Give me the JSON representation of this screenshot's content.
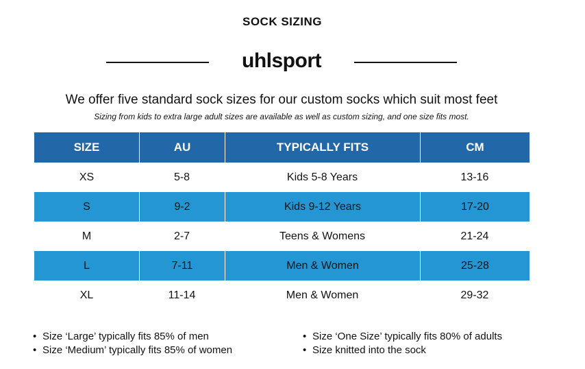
{
  "heading": "SOCK SIZING",
  "brand": "uhlsport",
  "intro": "We offer five standard sock sizes for our custom socks which suit most feet",
  "note": "Sizing from kids to extra large adult sizes are available as well as custom sizing, and one size fits most.",
  "table": {
    "headers": [
      "SIZE",
      "AU",
      "TYPICALLY FITS",
      "CM"
    ],
    "rows": [
      [
        "XS",
        "5-8",
        "Kids 5-8 Years",
        "13-16"
      ],
      [
        "S",
        "9-2",
        "Kids 9-12 Years",
        "17-20"
      ],
      [
        "M",
        "2-7",
        "Teens & Womens",
        "21-24"
      ],
      [
        "L",
        "7-11",
        "Men & Women",
        "25-28"
      ],
      [
        "XL",
        "11-14",
        "Men & Women",
        "29-32"
      ]
    ]
  },
  "notes_left": [
    "Size ‘Large’ typically fits 85% of men",
    "Size ‘Medium’ typically fits 85% of women"
  ],
  "notes_right": [
    "Size ‘One Size’ typically fits 80% of adults",
    "Size knitted into the sock"
  ],
  "bullet_char": "•",
  "colors": {
    "header_bg": "#2267a8",
    "alt_row_bg": "#2496d3",
    "text": "#111111"
  }
}
